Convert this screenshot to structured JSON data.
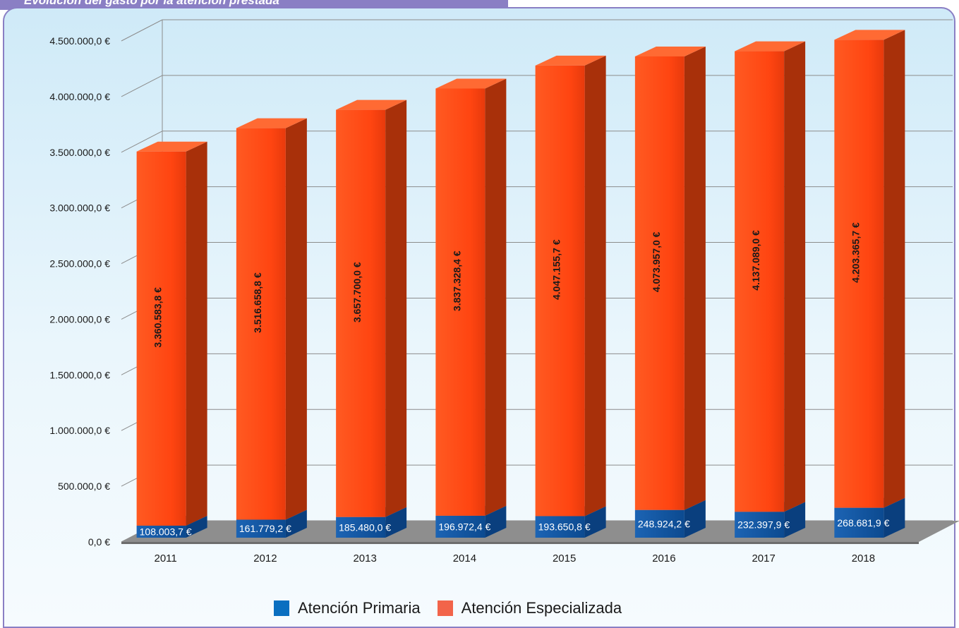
{
  "header": {
    "title": "Evolución del gasto por la atención prestada"
  },
  "chart_data": {
    "type": "bar",
    "stacked": true,
    "three_d": true,
    "categories": [
      "2011",
      "2012",
      "2013",
      "2014",
      "2015",
      "2016",
      "2017",
      "2018"
    ],
    "series": [
      {
        "name": "Atención Primaria",
        "color": "#0f4f99",
        "values": [
          108003.7,
          161779.2,
          185480.0,
          196972.4,
          193650.8,
          248924.2,
          232397.9,
          268681.9
        ],
        "labels": [
          "108.003,7 €",
          "161.779,2 €",
          "185.480,0 €",
          "196.972,4 €",
          "193.650,8 €",
          "248.924,2 €",
          "232.397,9 €",
          "268.681,9 €"
        ]
      },
      {
        "name": "Atención Especializada",
        "color": "#ff4511",
        "values": [
          3360583.8,
          3516658.8,
          3657700.0,
          3837328.4,
          4047155.7,
          4073957.0,
          4137089.0,
          4203365.7
        ],
        "labels": [
          "3.360.583,8 €",
          "3.516.658,8 €",
          "3.657.700,0 €",
          "3.837.328,4 €",
          "4.047.155,7 €",
          "4.073.957,0 €",
          "4.137.089,0 €",
          "4.203.365,7 €"
        ]
      }
    ],
    "ylim": [
      0,
      4500000
    ],
    "yticks": [
      0,
      500000,
      1000000,
      1500000,
      2000000,
      2500000,
      3000000,
      3500000,
      4000000,
      4500000
    ],
    "ytick_labels": [
      "0,0 €",
      "500.000,0 €",
      "1.000.000,0 €",
      "1.500.000,0 €",
      "2.000.000,0 €",
      "2.500.000,0 €",
      "3.000.000,0 €",
      "3.500.000,0 €",
      "4.000.000,0 €",
      "4.500.000,0 €"
    ],
    "xlabel": "",
    "ylabel": "",
    "grid": true,
    "legend_position": "bottom"
  },
  "legend": [
    {
      "label": "Atención Primaria",
      "color": "#0a6fc0"
    },
    {
      "label": "Atención Especializada",
      "color": "#f2644a"
    }
  ]
}
